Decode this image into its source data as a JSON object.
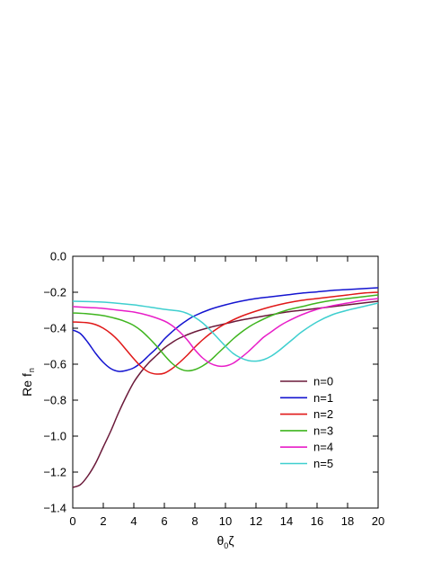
{
  "chart_data": {
    "type": "line",
    "xlabel": "θ",
    "xlabel_sub": "0",
    "xlabel_tail": "ζ",
    "ylabel": "Re f",
    "ylabel_sub": "n",
    "xlim": [
      0,
      20
    ],
    "ylim": [
      -1.4,
      0.0
    ],
    "xticks": [
      0,
      2,
      4,
      6,
      8,
      10,
      12,
      14,
      16,
      18,
      20
    ],
    "yticks": [
      0.0,
      -0.2,
      -0.4,
      -0.6,
      -0.8,
      -1.0,
      -1.2,
      -1.4
    ],
    "ytick_labels": [
      "0.0",
      "−0.2",
      "−0.4",
      "−0.6",
      "−0.8",
      "−1.0",
      "−1.2",
      "−1.4"
    ],
    "grid": false,
    "legend_position": "bottom-right",
    "series": [
      {
        "name": "n=0",
        "color": "#6b1a3a",
        "x": [
          0,
          0.5,
          1,
          1.5,
          2,
          2.5,
          3,
          3.5,
          4,
          4.5,
          5,
          5.5,
          6,
          6.5,
          7,
          8,
          9,
          10,
          11,
          12,
          13,
          14,
          15,
          16,
          17,
          18,
          19,
          20
        ],
        "y": [
          -1.285,
          -1.27,
          -1.22,
          -1.15,
          -1.06,
          -0.97,
          -0.87,
          -0.78,
          -0.7,
          -0.64,
          -0.59,
          -0.55,
          -0.51,
          -0.48,
          -0.455,
          -0.42,
          -0.395,
          -0.375,
          -0.355,
          -0.34,
          -0.325,
          -0.31,
          -0.3,
          -0.29,
          -0.28,
          -0.27,
          -0.26,
          -0.25
        ]
      },
      {
        "name": "n=1",
        "color": "#1414d0",
        "x": [
          0,
          0.5,
          1,
          1.5,
          2,
          2.5,
          3,
          3.5,
          4,
          4.5,
          5,
          5.5,
          6,
          6.5,
          7,
          7.5,
          8,
          9,
          10,
          11,
          12,
          13,
          14,
          15,
          16,
          17,
          18,
          19,
          20
        ],
        "y": [
          -0.41,
          -0.43,
          -0.48,
          -0.54,
          -0.59,
          -0.625,
          -0.64,
          -0.635,
          -0.62,
          -0.59,
          -0.55,
          -0.51,
          -0.46,
          -0.42,
          -0.385,
          -0.355,
          -0.33,
          -0.295,
          -0.27,
          -0.25,
          -0.235,
          -0.225,
          -0.215,
          -0.205,
          -0.198,
          -0.19,
          -0.185,
          -0.18,
          -0.175
        ]
      },
      {
        "name": "n=2",
        "color": "#e01818",
        "x": [
          0,
          1,
          1.5,
          2,
          2.5,
          3,
          3.5,
          4,
          4.5,
          5,
          5.5,
          6,
          6.5,
          7,
          7.5,
          8,
          8.5,
          9,
          9.5,
          10,
          11,
          12,
          13,
          14,
          15,
          16,
          17,
          18,
          19,
          20
        ],
        "y": [
          -0.365,
          -0.37,
          -0.38,
          -0.4,
          -0.43,
          -0.47,
          -0.52,
          -0.57,
          -0.615,
          -0.645,
          -0.655,
          -0.65,
          -0.625,
          -0.59,
          -0.55,
          -0.505,
          -0.465,
          -0.43,
          -0.4,
          -0.375,
          -0.335,
          -0.305,
          -0.28,
          -0.26,
          -0.245,
          -0.235,
          -0.225,
          -0.215,
          -0.205,
          -0.2
        ]
      },
      {
        "name": "n=3",
        "color": "#3fb51f",
        "x": [
          0,
          1,
          2,
          3,
          3.5,
          4,
          4.5,
          5,
          5.5,
          6,
          6.5,
          7,
          7.5,
          8,
          8.5,
          9,
          9.5,
          10,
          10.5,
          11,
          11.5,
          12,
          13,
          14,
          15,
          16,
          17,
          18,
          19,
          20
        ],
        "y": [
          -0.315,
          -0.32,
          -0.33,
          -0.35,
          -0.365,
          -0.385,
          -0.415,
          -0.455,
          -0.5,
          -0.55,
          -0.595,
          -0.625,
          -0.637,
          -0.63,
          -0.61,
          -0.58,
          -0.54,
          -0.5,
          -0.46,
          -0.425,
          -0.395,
          -0.37,
          -0.33,
          -0.3,
          -0.28,
          -0.26,
          -0.245,
          -0.235,
          -0.225,
          -0.215
        ]
      },
      {
        "name": "n=4",
        "color": "#e81ec8",
        "x": [
          0,
          1,
          2,
          3,
          4,
          5,
          6,
          6.5,
          7,
          7.5,
          8,
          8.5,
          9,
          9.5,
          10,
          10.5,
          11,
          11.5,
          12,
          12.5,
          13,
          13.5,
          14,
          15,
          16,
          17,
          18,
          19,
          20
        ],
        "y": [
          -0.28,
          -0.285,
          -0.29,
          -0.3,
          -0.31,
          -0.33,
          -0.36,
          -0.385,
          -0.42,
          -0.465,
          -0.52,
          -0.565,
          -0.595,
          -0.61,
          -0.61,
          -0.595,
          -0.565,
          -0.53,
          -0.49,
          -0.45,
          -0.42,
          -0.39,
          -0.365,
          -0.325,
          -0.295,
          -0.275,
          -0.26,
          -0.245,
          -0.235
        ]
      },
      {
        "name": "n=5",
        "color": "#3fcfcf",
        "x": [
          0,
          1,
          2,
          3,
          4,
          5,
          6,
          7,
          7.5,
          8,
          8.5,
          9,
          9.5,
          10,
          10.5,
          11,
          11.5,
          12,
          12.5,
          13,
          13.5,
          14,
          14.5,
          15,
          16,
          17,
          18,
          19,
          20
        ],
        "y": [
          -0.25,
          -0.252,
          -0.255,
          -0.262,
          -0.27,
          -0.282,
          -0.295,
          -0.305,
          -0.318,
          -0.34,
          -0.37,
          -0.41,
          -0.455,
          -0.5,
          -0.54,
          -0.565,
          -0.58,
          -0.583,
          -0.575,
          -0.555,
          -0.525,
          -0.49,
          -0.455,
          -0.42,
          -0.365,
          -0.325,
          -0.3,
          -0.28,
          -0.26
        ]
      }
    ]
  }
}
